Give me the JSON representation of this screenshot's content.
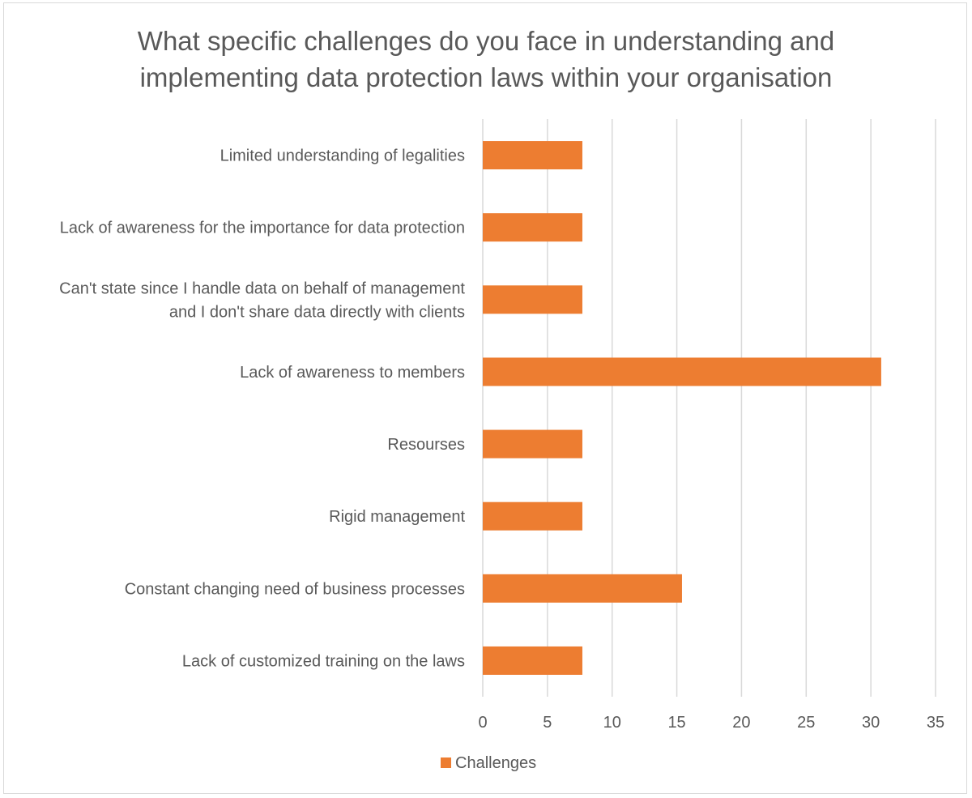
{
  "chart_data": {
    "type": "bar",
    "orientation": "horizontal",
    "title_lines": [
      "What specific challenges do you face in understanding and",
      "implementing data protection laws within your organisation"
    ],
    "categories": [
      [
        "Limited understanding of legalities"
      ],
      [
        "Lack of awareness for the importance for data protection"
      ],
      [
        "Can't state since I handle data on behalf of management",
        "and I don't share data directly with clients"
      ],
      [
        "Lack of awareness to members"
      ],
      [
        "Resourses"
      ],
      [
        "Rigid management"
      ],
      [
        "Constant changing need of business processes"
      ],
      [
        "Lack of customized training on the laws"
      ]
    ],
    "series": [
      {
        "name": "Challenges",
        "color": "#ed7d31",
        "values": [
          7.7,
          7.7,
          7.7,
          30.8,
          7.7,
          7.7,
          15.4,
          7.7
        ]
      }
    ],
    "xlim": [
      0,
      35
    ],
    "xticks": [
      "0",
      "5",
      "10",
      "15",
      "20",
      "25",
      "30",
      "35"
    ],
    "xtick_values": [
      0,
      5,
      10,
      15,
      20,
      25,
      30,
      35
    ],
    "grid": true,
    "legend_position": "bottom",
    "colors": {
      "bar": "#ed7d31",
      "grid": "#d9d9d9",
      "text": "#595959"
    }
  }
}
